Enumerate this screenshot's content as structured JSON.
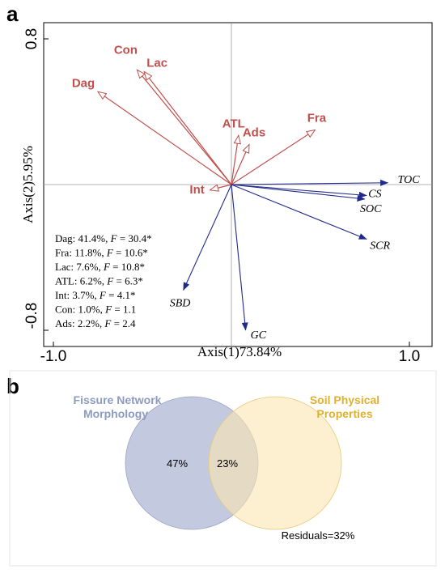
{
  "panel_a": {
    "letter": "a",
    "xlabel": "Axis(1)73.84%",
    "ylabel": "Axis(2)5.95%",
    "x_ticks": [
      "-1.0",
      "1.0"
    ],
    "y_ticks": [
      "0.8",
      "-0.8"
    ],
    "stats": [
      {
        "name": "Dag",
        "pct": "41.4%",
        "F": "30.4*"
      },
      {
        "name": "Fra",
        "pct": "11.8%",
        "F": "10.6*"
      },
      {
        "name": "Lac",
        "pct": "7.6%",
        "F": "10.8*"
      },
      {
        "name": "ATL",
        "pct": "6.2%",
        "F": "6.3*"
      },
      {
        "name": "Int",
        "pct": "3.7%",
        "F": "4.1*"
      },
      {
        "name": "Con",
        "pct": "1.0%",
        "F": "1.1"
      },
      {
        "name": "Ads",
        "pct": "2.2%",
        "F": "2.4"
      }
    ]
  },
  "panel_b": {
    "letter": "b",
    "set_a_title": [
      "Fissure Network",
      "Morphology"
    ],
    "set_b_title": [
      "Soil Physical",
      "Properties"
    ],
    "only_a": "47%",
    "overlap": "23%",
    "residuals": "Residuals=32%"
  },
  "colors": {
    "explanatory": "#c0504d",
    "response": "#1f2a8a",
    "venn_a": "#b8c0d9",
    "venn_b": "#fbe6b0"
  },
  "chart_data": [
    {
      "type": "biplot",
      "xlim": [
        -1.0,
        1.0
      ],
      "ylim": [
        -0.8,
        0.8
      ],
      "xlabel": "Axis(1)73.84%",
      "ylabel": "Axis(2)5.95%",
      "explanatory": [
        {
          "name": "Dag",
          "x": -0.75,
          "y": 0.51
        },
        {
          "name": "Con",
          "x": -0.53,
          "y": 0.63
        },
        {
          "name": "Lac",
          "x": -0.49,
          "y": 0.62
        },
        {
          "name": "ATL",
          "x": 0.04,
          "y": 0.27
        },
        {
          "name": "Ads",
          "x": 0.1,
          "y": 0.22
        },
        {
          "name": "Fra",
          "x": 0.47,
          "y": 0.3
        },
        {
          "name": "Int",
          "x": -0.12,
          "y": -0.03
        }
      ],
      "response": [
        {
          "name": "TOC",
          "x": 0.88,
          "y": 0.01
        },
        {
          "name": "CS",
          "x": 0.76,
          "y": -0.06
        },
        {
          "name": "SOC",
          "x": 0.75,
          "y": -0.08
        },
        {
          "name": "SCR",
          "x": 0.76,
          "y": -0.3
        },
        {
          "name": "SBD",
          "x": -0.27,
          "y": -0.58
        },
        {
          "name": "GC",
          "x": 0.08,
          "y": -0.8
        }
      ]
    },
    {
      "type": "venn",
      "sets": [
        "Fissure Network Morphology",
        "Soil Physical Properties"
      ],
      "values": {
        "only_fissure": 47,
        "shared": 23,
        "residuals": 32
      }
    }
  ]
}
